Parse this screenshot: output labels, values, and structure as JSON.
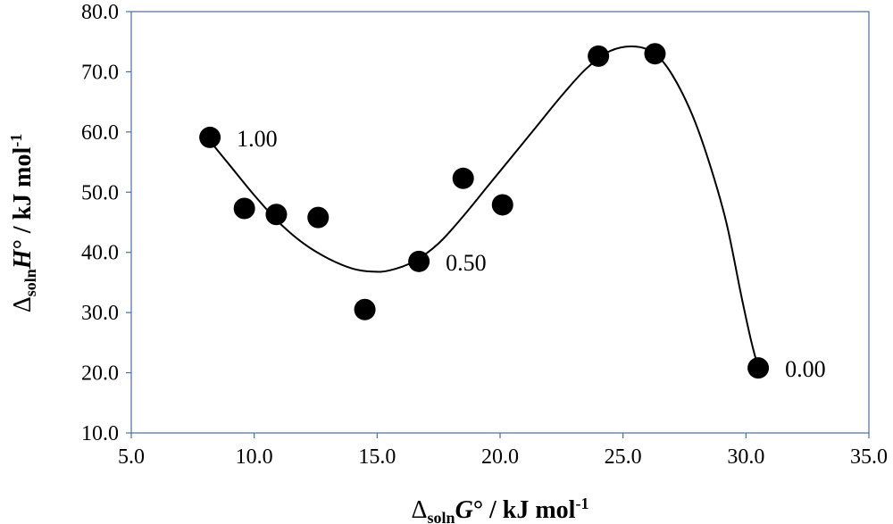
{
  "chart_data": {
    "type": "scatter",
    "title": "",
    "xlabel": {
      "delta": "Δ",
      "sub": "soln",
      "var": "G",
      "rest": "° / kJ mol",
      "sup": "-1"
    },
    "ylabel": {
      "delta": "Δ",
      "sub": "soln",
      "var": "H",
      "rest": "° / kJ mol",
      "sup": "-1"
    },
    "xlim": [
      5.0,
      35.0
    ],
    "ylim": [
      10.0,
      80.0
    ],
    "x_ticks": [
      "5.0",
      "10.0",
      "15.0",
      "20.0",
      "25.0",
      "30.0",
      "35.0"
    ],
    "y_ticks": [
      "10.0",
      "20.0",
      "30.0",
      "40.0",
      "50.0",
      "60.0",
      "70.0",
      "80.0"
    ],
    "grid": false,
    "legend": "none",
    "series": [
      {
        "points": [
          {
            "x": 8.2,
            "y": 59.1
          },
          {
            "x": 9.6,
            "y": 47.3
          },
          {
            "x": 10.9,
            "y": 46.3
          },
          {
            "x": 12.6,
            "y": 45.8
          },
          {
            "x": 14.5,
            "y": 30.5
          },
          {
            "x": 16.7,
            "y": 38.5
          },
          {
            "x": 18.5,
            "y": 52.3
          },
          {
            "x": 20.1,
            "y": 47.9
          },
          {
            "x": 24.0,
            "y": 72.6
          },
          {
            "x": 26.3,
            "y": 73.0
          },
          {
            "x": 30.5,
            "y": 20.8
          }
        ]
      }
    ],
    "fit_curve": [
      {
        "x": 8.2,
        "y": 58.5
      },
      {
        "x": 9.0,
        "y": 54.5
      },
      {
        "x": 10.0,
        "y": 49.5
      },
      {
        "x": 11.0,
        "y": 45.0
      },
      {
        "x": 12.0,
        "y": 41.5
      },
      {
        "x": 13.0,
        "y": 39.0
      },
      {
        "x": 14.0,
        "y": 37.3
      },
      {
        "x": 14.8,
        "y": 36.8
      },
      {
        "x": 15.5,
        "y": 37.0
      },
      {
        "x": 16.5,
        "y": 38.5
      },
      {
        "x": 17.5,
        "y": 41.5
      },
      {
        "x": 18.5,
        "y": 46.0
      },
      {
        "x": 19.5,
        "y": 51.0
      },
      {
        "x": 20.5,
        "y": 56.0
      },
      {
        "x": 21.5,
        "y": 61.0
      },
      {
        "x": 22.5,
        "y": 66.0
      },
      {
        "x": 23.5,
        "y": 70.5
      },
      {
        "x": 24.5,
        "y": 73.5
      },
      {
        "x": 25.5,
        "y": 74.2
      },
      {
        "x": 26.3,
        "y": 73.0
      },
      {
        "x": 27.0,
        "y": 69.5
      },
      {
        "x": 27.8,
        "y": 63.0
      },
      {
        "x": 28.5,
        "y": 55.0
      },
      {
        "x": 29.2,
        "y": 45.0
      },
      {
        "x": 29.8,
        "y": 33.0
      },
      {
        "x": 30.2,
        "y": 25.5
      },
      {
        "x": 30.5,
        "y": 20.8
      }
    ],
    "annotations": [
      {
        "text": "1.00",
        "x": 8.2,
        "y": 59.1
      },
      {
        "text": "0.50",
        "x": 16.7,
        "y": 38.5
      },
      {
        "text": "0.00",
        "x": 30.5,
        "y": 20.8
      }
    ],
    "colors": {
      "marker": "#000000",
      "curve": "#000000",
      "frame": "#4a6f9c"
    }
  }
}
